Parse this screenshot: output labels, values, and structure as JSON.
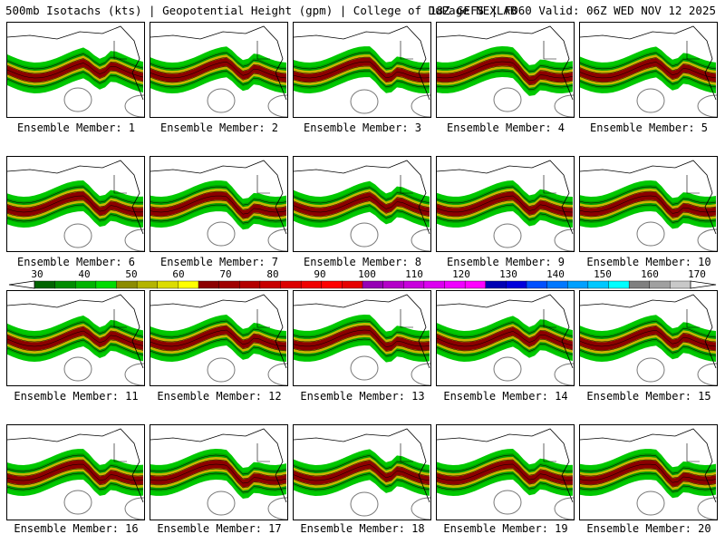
{
  "header": {
    "title_left": "500mb Isotachs (kts) | Geopotential Height (gpm) | College of DuPage NEXLAB",
    "title_right": "18Z GEFS | F060 Valid: 06Z WED NOV 12 2025"
  },
  "members": [
    {
      "label": "Ensemble Member: 1"
    },
    {
      "label": "Ensemble Member: 2"
    },
    {
      "label": "Ensemble Member: 3"
    },
    {
      "label": "Ensemble Member: 4"
    },
    {
      "label": "Ensemble Member: 5"
    },
    {
      "label": "Ensemble Member: 6"
    },
    {
      "label": "Ensemble Member: 7"
    },
    {
      "label": "Ensemble Member: 8"
    },
    {
      "label": "Ensemble Member: 9"
    },
    {
      "label": "Ensemble Member: 10"
    },
    {
      "label": "Ensemble Member: 11"
    },
    {
      "label": "Ensemble Member: 12"
    },
    {
      "label": "Ensemble Member: 13"
    },
    {
      "label": "Ensemble Member: 14"
    },
    {
      "label": "Ensemble Member: 15"
    },
    {
      "label": "Ensemble Member: 16"
    },
    {
      "label": "Ensemble Member: 17"
    },
    {
      "label": "Ensemble Member: 18"
    },
    {
      "label": "Ensemble Member: 19"
    },
    {
      "label": "Ensemble Member: 20"
    }
  ],
  "colorbar": {
    "labels": [
      "30",
      "40",
      "50",
      "60",
      "70",
      "80",
      "90",
      "100",
      "110",
      "120",
      "130",
      "140",
      "150",
      "160",
      "170"
    ],
    "colors": [
      "#006400",
      "#008c00",
      "#00b400",
      "#00dc00",
      "#8c8c00",
      "#b4b400",
      "#dcdc00",
      "#ffff00",
      "#8c0000",
      "#a00000",
      "#b40000",
      "#c80000",
      "#dc0000",
      "#f00000",
      "#ff0000",
      "#e60000",
      "#9600b4",
      "#b400c8",
      "#c800dc",
      "#dc00f0",
      "#f000ff",
      "#ff00ff",
      "#0000b4",
      "#0000dc",
      "#0050ff",
      "#0078ff",
      "#00a0ff",
      "#00c8ff",
      "#00ffff",
      "#808080",
      "#a0a0a0",
      "#c8c8c8"
    ]
  },
  "colors": {
    "strong": "#8b0000",
    "mid": "#c8b400",
    "weak": "#00a000",
    "edge": "#00c800"
  }
}
